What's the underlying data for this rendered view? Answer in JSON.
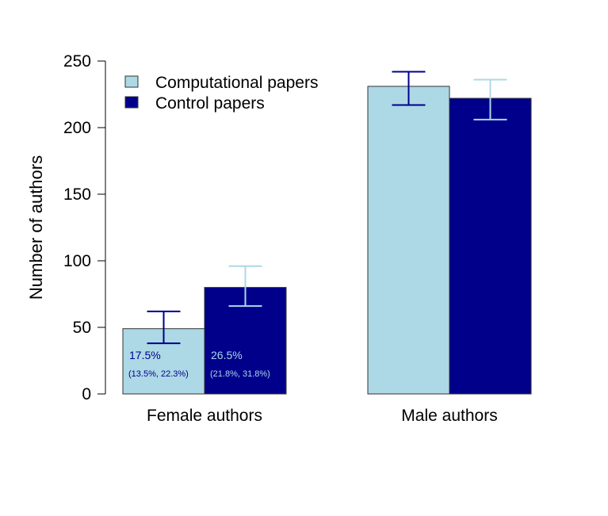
{
  "chart_data": {
    "type": "bar",
    "ylabel": "Number of authors",
    "ylim": [
      0,
      250
    ],
    "yticks": [
      0,
      50,
      100,
      150,
      200,
      250
    ],
    "categories": [
      "Female authors",
      "Male authors"
    ],
    "series": [
      {
        "name": "Computational papers",
        "color": "#add8e6",
        "values": [
          49,
          231
        ],
        "error_low": [
          38,
          217
        ],
        "error_high": [
          62,
          242
        ],
        "error_color": "#00008b",
        "annotations": [
          {
            "pct": "17.5%",
            "ci": "(13.5%, 22.3%)"
          },
          null
        ]
      },
      {
        "name": "Control papers",
        "color": "#00008b",
        "values": [
          80,
          222
        ],
        "error_low": [
          66,
          206
        ],
        "error_high": [
          96,
          236
        ],
        "error_color": "#add8e6",
        "annotations": [
          {
            "pct": "26.5%",
            "ci": "(21.8%, 31.8%)"
          },
          null
        ]
      }
    ],
    "legend": {
      "position": "top-left"
    },
    "grid": false
  }
}
